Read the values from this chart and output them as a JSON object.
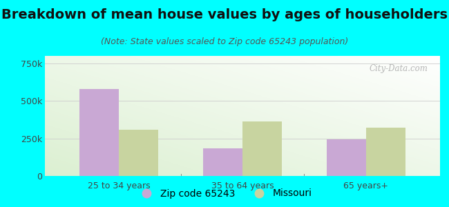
{
  "title": "Breakdown of mean house values by ages of householders",
  "subtitle": "(Note: State values scaled to Zip code 65243 population)",
  "categories": [
    "25 to 34 years",
    "35 to 64 years",
    "65 years+"
  ],
  "zip_values": [
    580000,
    185000,
    243000
  ],
  "state_values": [
    310000,
    365000,
    320000
  ],
  "zip_color": "#c9a8d4",
  "state_color": "#c8d4a0",
  "background_color": "#00ffff",
  "ylim": [
    0,
    800000
  ],
  "yticks": [
    0,
    250000,
    500000,
    750000
  ],
  "ytick_labels": [
    "0",
    "250k",
    "500k",
    "750k"
  ],
  "bar_width": 0.32,
  "legend_zip_label": "Zip code 65243",
  "legend_state_label": "Missouri",
  "title_fontsize": 14,
  "subtitle_fontsize": 9,
  "tick_fontsize": 9,
  "legend_fontsize": 10,
  "watermark_text": "City-Data.com"
}
